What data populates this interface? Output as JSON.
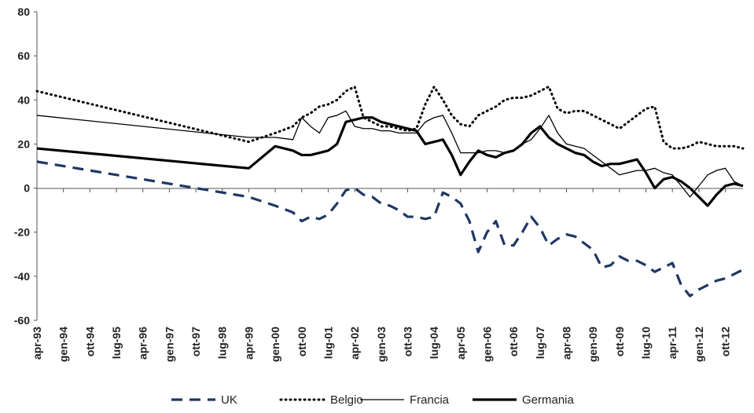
{
  "chart_data": {
    "type": "line",
    "title": "",
    "xlabel": "",
    "ylabel": "",
    "ylim": [
      -60,
      80
    ],
    "yticks": [
      -60,
      -40,
      -20,
      0,
      20,
      40,
      60,
      80
    ],
    "grid": false,
    "legend_position": "bottom",
    "x_tick_labels": [
      "apr-93",
      "gen-94",
      "ott-94",
      "lug-95",
      "apr-96",
      "gen-97",
      "ott-97",
      "lug-98",
      "apr-99",
      "gen-00",
      "ott-00",
      "lug-01",
      "apr-02",
      "gen-03",
      "ott-03",
      "lug-04",
      "apr-05",
      "gen-06",
      "ott-06",
      "lug-07",
      "apr-08",
      "gen-09",
      "ott-09",
      "lug-10",
      "apr-11",
      "gen-12",
      "ott-12"
    ],
    "x": [
      "apr-93",
      "apr-99",
      "gen-00",
      "lug-00",
      "ott-00",
      "gen-01",
      "apr-01",
      "lug-01",
      "ott-01",
      "gen-02",
      "apr-02",
      "lug-02",
      "ott-02",
      "gen-03",
      "apr-03",
      "lug-03",
      "ott-03",
      "gen-04",
      "apr-04",
      "lug-04",
      "ott-04",
      "gen-05",
      "apr-05",
      "lug-05",
      "ott-05",
      "gen-06",
      "apr-06",
      "lug-06",
      "ott-06",
      "gen-07",
      "apr-07",
      "lug-07",
      "ott-07",
      "gen-08",
      "apr-08",
      "lug-08",
      "ott-08",
      "gen-09",
      "apr-09",
      "lug-09",
      "ott-09",
      "gen-10",
      "apr-10",
      "lug-10",
      "ott-10",
      "gen-11",
      "apr-11",
      "lug-11",
      "ott-11",
      "gen-12",
      "apr-12",
      "lug-12",
      "ott-12",
      "gen-13",
      "apr-13"
    ],
    "series": [
      {
        "name": "UK",
        "color": "#1f3864",
        "style": "dashed",
        "values": [
          12,
          -4,
          -8,
          -11,
          -15,
          -13,
          -14,
          -12,
          -7,
          -1,
          0,
          -3,
          -4,
          -7,
          -8,
          -10,
          -13,
          -13,
          -14,
          -13,
          -2,
          -4,
          -7,
          -15,
          -29,
          -20,
          -15,
          -26,
          -26,
          -20,
          -13,
          -18,
          -26,
          -23,
          -21,
          -22,
          -25,
          -28,
          -36,
          -35,
          -31,
          -33,
          -33,
          -35,
          -38,
          -36,
          -34,
          -44,
          -49,
          -46,
          -44,
          -42,
          -41,
          -39,
          -37
        ]
      },
      {
        "name": "Belgio",
        "color": "#000000",
        "style": "dotted",
        "values": [
          44,
          21,
          25,
          28,
          32,
          34,
          37,
          38,
          40,
          44,
          46,
          32,
          30,
          28,
          28,
          27,
          26,
          27,
          38,
          46,
          40,
          33,
          29,
          28,
          33,
          35,
          37,
          40,
          41,
          41,
          42,
          44,
          46,
          36,
          34,
          35,
          35,
          33,
          31,
          29,
          27,
          30,
          33,
          36,
          37,
          21,
          18,
          18,
          19,
          21,
          20,
          19,
          19,
          19,
          18
        ]
      },
      {
        "name": "Francia",
        "color": "#000000",
        "style": "solid-thin",
        "values": [
          33,
          23,
          23,
          22,
          32,
          28,
          25,
          32,
          33,
          35,
          28,
          27,
          27,
          26,
          26,
          25,
          25,
          25,
          30,
          32,
          33,
          25,
          16,
          16,
          16,
          17,
          17,
          16,
          17,
          20,
          22,
          27,
          33,
          25,
          20,
          19,
          18,
          15,
          12,
          9,
          6,
          7,
          8,
          8,
          9,
          7,
          6,
          1,
          -4,
          1,
          6,
          8,
          9,
          3,
          1
        ]
      },
      {
        "name": "Germania",
        "color": "#000000",
        "style": "solid-thick",
        "values": [
          18,
          9,
          19,
          17,
          15,
          15,
          16,
          17,
          20,
          30,
          31,
          32,
          32,
          30,
          29,
          28,
          27,
          26,
          20,
          21,
          22,
          15,
          6,
          12,
          17,
          15,
          14,
          16,
          17,
          20,
          25,
          28,
          23,
          20,
          18,
          16,
          15,
          12,
          10,
          11,
          11,
          12,
          13,
          7,
          0,
          4,
          5,
          3,
          0,
          -4,
          -8,
          -3,
          1,
          2,
          1
        ]
      }
    ]
  }
}
